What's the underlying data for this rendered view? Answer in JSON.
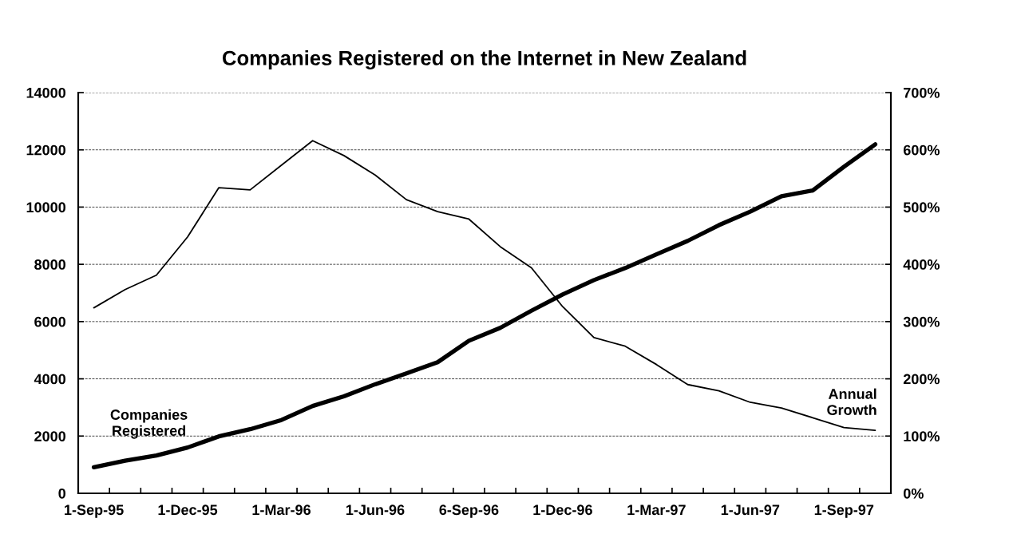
{
  "chart_data": {
    "type": "line",
    "title": "Companies Registered on the Internet in New Zealand",
    "categories": [
      "1-Sep-95",
      null,
      null,
      "1-Dec-95",
      null,
      null,
      "1-Mar-96",
      null,
      null,
      "1-Jun-96",
      null,
      null,
      "6-Sep-96",
      null,
      null,
      "1-Dec-96",
      null,
      null,
      "1-Mar-97",
      null,
      null,
      "1-Jun-97",
      null,
      null,
      "1-Sep-97",
      null
    ],
    "series": [
      {
        "name": "Companies Registered",
        "color": "#000000",
        "axis": "y",
        "values": [
          910,
          1140,
          1320,
          1600,
          1990,
          2240,
          2560,
          3050,
          3390,
          3810,
          4190,
          4580,
          5330,
          5780,
          6380,
          6950,
          7450,
          7870,
          8350,
          8820,
          9370,
          9840,
          10380,
          10580,
          11410,
          12190
        ]
      },
      {
        "name": "Annual Growth",
        "color": "#000000",
        "axis": "y2",
        "values": [
          324,
          356,
          381,
          448,
          534,
          530,
          573,
          616,
          590,
          556,
          513,
          492,
          479,
          431,
          394,
          326,
          272,
          257,
          225,
          190,
          179,
          159,
          149,
          132,
          115,
          110
        ]
      }
    ],
    "ylim": [
      0,
      14000
    ],
    "yticks": [
      0,
      2000,
      4000,
      6000,
      8000,
      10000,
      12000,
      14000
    ],
    "y2lim": [
      0,
      700
    ],
    "y2ticks": [
      {
        "value": 0,
        "label": "0%"
      },
      {
        "value": 100,
        "label": "100%"
      },
      {
        "value": 200,
        "label": "200%"
      },
      {
        "value": 300,
        "label": "300%"
      },
      {
        "value": 400,
        "label": "400%"
      },
      {
        "value": 500,
        "label": "500%"
      },
      {
        "value": 600,
        "label": "600%"
      },
      {
        "value": 700,
        "label": "700%"
      }
    ],
    "grid": "y"
  }
}
